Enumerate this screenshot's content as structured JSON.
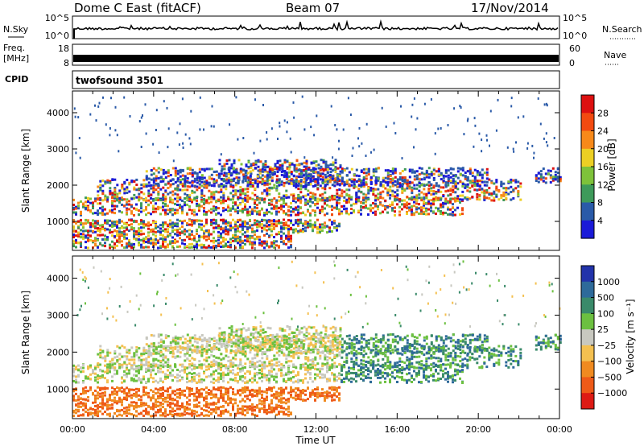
{
  "header": {
    "title": "Dome C East (fitACF)",
    "beam": "Beam 07",
    "date": "17/Nov/2014"
  },
  "strips": {
    "nsky_label": "N.Sky",
    "nsky_ticks": [
      "10^5",
      "10^0"
    ],
    "nsearch_label": "N.Search",
    "nsearch_ticks": [
      "10^5",
      "10^0"
    ],
    "freq_label": "Freq.",
    "freq_unit": "[MHz]",
    "freq_ticks": [
      "18",
      "8"
    ],
    "nave_label": "Nave",
    "nave_ticks": [
      "60",
      "0"
    ],
    "cpid_label": "CPID",
    "cpid_value": "twofsound 3501"
  },
  "chart_data": [
    {
      "type": "heatmap",
      "title": "",
      "xlabel": "Time UT",
      "ylabel": "Slant Range [km]",
      "x_ticks": [
        "00:00",
        "04:00",
        "08:00",
        "12:00",
        "16:00",
        "20:00",
        "00:00"
      ],
      "y_ticks": [
        1000,
        2000,
        3000,
        4000
      ],
      "ylim": [
        200,
        4600
      ],
      "colorbar": {
        "label": "Power [dB]",
        "ticks": [
          "28",
          "24",
          "20",
          "16",
          "12",
          "8",
          "4"
        ],
        "colors": [
          "#dd1010",
          "#f24a10",
          "#f7891a",
          "#eccf24",
          "#7ec23a",
          "#3e9a5a",
          "#2a5aa8",
          "#1a1ad8"
        ]
      }
    },
    {
      "type": "heatmap",
      "title": "",
      "xlabel": "Time UT",
      "ylabel": "Slant Range [km]",
      "x_ticks": [
        "00:00",
        "04:00",
        "08:00",
        "12:00",
        "16:00",
        "20:00",
        "00:00"
      ],
      "y_ticks": [
        1000,
        2000,
        3000,
        4000
      ],
      "ylim": [
        200,
        4600
      ],
      "colorbar": {
        "label": "Velocity [m s⁻¹]",
        "ticks": [
          "1000",
          "500",
          "100",
          "25",
          "−25",
          "−100",
          "−500",
          "−1000"
        ],
        "colors": [
          "#2233aa",
          "#2e6a9a",
          "#3a8a6a",
          "#6cc040",
          "#c8c8c0",
          "#f4c050",
          "#f08a20",
          "#ee5a18",
          "#dd1a14"
        ]
      }
    }
  ]
}
